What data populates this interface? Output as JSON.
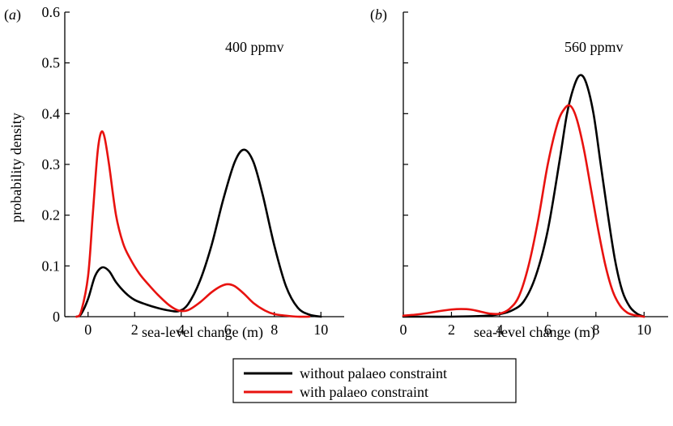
{
  "chart_data": [
    {
      "type": "line",
      "panel_label": "a",
      "annotation": "400 ppmv",
      "xlabel": "sea-level change (m)",
      "ylabel": "probability density",
      "xlim": [
        -1,
        11
      ],
      "ylim": [
        0,
        0.6
      ],
      "xticks": [
        0,
        2,
        4,
        6,
        8,
        10
      ],
      "yticks": [
        0,
        0.1,
        0.2,
        0.3,
        0.4,
        0.5,
        0.6
      ],
      "ytick_labels": [
        "0",
        "0.1",
        "0.2",
        "0.3",
        "0.4",
        "0.5",
        "0.6"
      ],
      "grid": false,
      "series": [
        {
          "name": "without palaeo constraint",
          "color": "#000000",
          "x": [
            -0.5,
            -0.3,
            0,
            0.3,
            0.6,
            0.9,
            1.2,
            1.6,
            2,
            2.5,
            3,
            3.5,
            3.9,
            4.3,
            4.8,
            5.3,
            5.8,
            6.3,
            6.7,
            7.1,
            7.5,
            8,
            8.5,
            9,
            9.5,
            10
          ],
          "y": [
            0.0,
            0.005,
            0.035,
            0.08,
            0.097,
            0.09,
            0.068,
            0.047,
            0.033,
            0.024,
            0.017,
            0.012,
            0.011,
            0.025,
            0.07,
            0.14,
            0.23,
            0.305,
            0.329,
            0.305,
            0.24,
            0.14,
            0.06,
            0.018,
            0.004,
            0.0
          ]
        },
        {
          "name": "with palaeo constraint",
          "color": "#e8120f",
          "x": [
            -0.5,
            -0.3,
            0,
            0.2,
            0.4,
            0.55,
            0.7,
            0.9,
            1.2,
            1.5,
            1.8,
            2.2,
            2.6,
            3,
            3.5,
            3.9,
            4.3,
            4.8,
            5.3,
            5.7,
            6,
            6.3,
            6.7,
            7.1,
            7.6,
            8,
            8.5,
            9,
            9.5
          ],
          "y": [
            0.0,
            0.01,
            0.08,
            0.2,
            0.32,
            0.362,
            0.355,
            0.3,
            0.2,
            0.145,
            0.115,
            0.085,
            0.063,
            0.043,
            0.022,
            0.012,
            0.013,
            0.028,
            0.048,
            0.06,
            0.064,
            0.06,
            0.045,
            0.027,
            0.012,
            0.005,
            0.002,
            0.0,
            0.0
          ]
        }
      ]
    },
    {
      "type": "line",
      "panel_label": "b",
      "annotation": "560 ppmv",
      "xlabel": "sea-level change (m)",
      "ylabel": "",
      "xlim": [
        0,
        11
      ],
      "ylim": [
        0,
        0.6
      ],
      "xticks": [
        0,
        2,
        4,
        6,
        8,
        10
      ],
      "yticks": [
        0,
        0.1,
        0.2,
        0.3,
        0.4,
        0.5,
        0.6
      ],
      "ytick_labels": [
        "",
        "",
        "",
        "",
        "",
        "",
        ""
      ],
      "grid": false,
      "series": [
        {
          "name": "without palaeo constraint",
          "color": "#000000",
          "x": [
            0,
            1,
            2,
            3,
            3.5,
            4,
            4.5,
            5,
            5.5,
            6,
            6.5,
            6.8,
            7.1,
            7.35,
            7.6,
            7.9,
            8.2,
            8.5,
            8.8,
            9.1,
            9.4,
            9.7,
            10
          ],
          "y": [
            0,
            0,
            0,
            0.001,
            0.002,
            0.005,
            0.012,
            0.03,
            0.08,
            0.17,
            0.31,
            0.4,
            0.455,
            0.476,
            0.46,
            0.4,
            0.3,
            0.2,
            0.11,
            0.05,
            0.02,
            0.006,
            0.0
          ]
        },
        {
          "name": "with palaeo constraint",
          "color": "#e8120f",
          "x": [
            0,
            0.5,
            1,
            1.5,
            2,
            2.4,
            2.8,
            3.2,
            3.6,
            4,
            4.4,
            4.8,
            5.2,
            5.6,
            6,
            6.4,
            6.7,
            6.95,
            7.2,
            7.5,
            7.8,
            8.1,
            8.4,
            8.7,
            9,
            9.3,
            9.6,
            10
          ],
          "y": [
            0.002,
            0.004,
            0.007,
            0.011,
            0.014,
            0.015,
            0.014,
            0.01,
            0.006,
            0.006,
            0.015,
            0.04,
            0.1,
            0.19,
            0.3,
            0.38,
            0.41,
            0.415,
            0.39,
            0.33,
            0.25,
            0.17,
            0.1,
            0.05,
            0.022,
            0.008,
            0.003,
            0.0
          ]
        }
      ]
    }
  ],
  "legend": {
    "position": "bottom-center",
    "entries": [
      {
        "label": "without palaeo constraint",
        "color": "#000000"
      },
      {
        "label": "with palaeo constraint",
        "color": "#e8120f"
      }
    ]
  }
}
